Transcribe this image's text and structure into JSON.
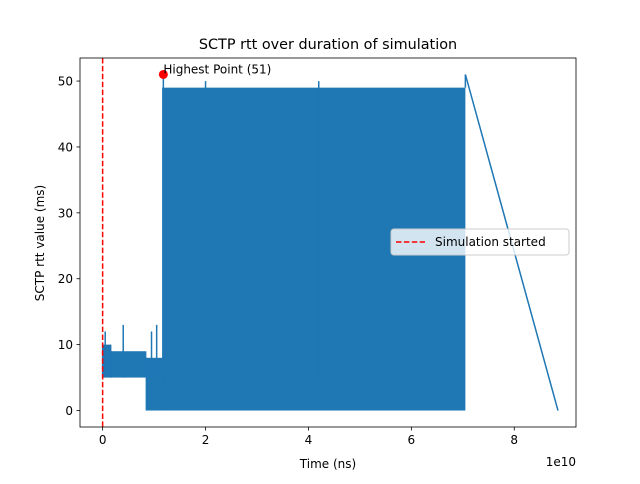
{
  "chart_data": {
    "type": "line",
    "title": "SCTP rtt over duration of simulation",
    "xlabel": "Time (ns)",
    "ylabel": "SCTP rtt value (ms)",
    "x_offset_label": "1e10",
    "xlim": [
      -0.44,
      9.2
    ],
    "ylim": [
      -2.5,
      53.5
    ],
    "x_ticks": [
      0,
      2,
      4,
      6,
      8
    ],
    "x_tick_labels": [
      "0",
      "2",
      "4",
      "6",
      "8"
    ],
    "y_ticks": [
      0,
      10,
      20,
      30,
      40,
      50
    ],
    "y_tick_labels": [
      "0",
      "10",
      "20",
      "30",
      "40",
      "50"
    ],
    "grid": false,
    "legend_position": "center-right",
    "colors": {
      "series": "#1f77b4",
      "start_line": "#ff0000",
      "highlight": "#ff0000"
    },
    "series": [
      {
        "values_note": "",
        "phases": [
          {
            "x_range": [
              0.0,
              0.17
            ],
            "y_low": 5,
            "y_high": 10
          },
          {
            "x_range": [
              0.17,
              0.85
            ],
            "y_low": 5,
            "y_high": 9
          },
          {
            "x_range": [
              0.85,
              1.17
            ],
            "y_low": 0,
            "y_high": 8
          },
          {
            "x_range": [
              1.17,
              7.05
            ],
            "y_low": 0,
            "y_high": 49
          }
        ],
        "tail": {
          "x": [
            7.05,
            8.85
          ],
          "y": [
            51,
            0
          ]
        }
      }
    ],
    "reference_lines": [
      {
        "orientation": "vertical",
        "x": 0,
        "style": "dashed",
        "label": "Simulation started"
      }
    ],
    "annotations": [
      {
        "x": 1.18,
        "y": 51,
        "text": "Highest Point (51)"
      }
    ],
    "legend": [
      {
        "label": "Simulation started",
        "style": "dashed",
        "color": "#ff0000"
      }
    ]
  }
}
